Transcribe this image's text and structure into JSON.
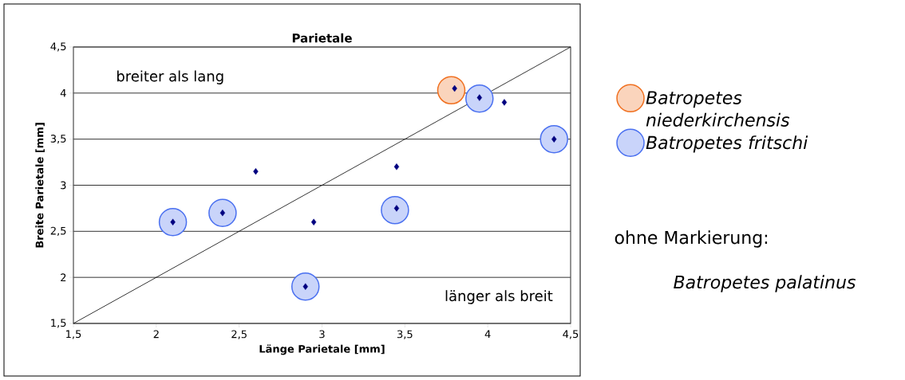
{
  "chart_data": {
    "type": "scatter",
    "title": "Parietale",
    "xlabel": "Länge Parietale [mm]",
    "ylabel": "Breite Parietale [mm]",
    "xlim": [
      1.5,
      4.5
    ],
    "ylim": [
      1.5,
      4.5
    ],
    "xticks": [
      {
        "value": 1.5,
        "label": "1,5"
      },
      2,
      {
        "value": 2.5,
        "label": "2,5"
      },
      3,
      {
        "value": 3.5,
        "label": "3,5"
      },
      4,
      {
        "value": 4.5,
        "label": "4,5"
      }
    ],
    "yticks": [
      {
        "value": 1.5,
        "label": "1,5"
      },
      2,
      {
        "value": 2.5,
        "label": "2,5"
      },
      3,
      {
        "value": 3.5,
        "label": "3,5"
      },
      4,
      {
        "value": 4.5,
        "label": "4,5"
      }
    ],
    "grid": "y",
    "legend": "right",
    "series": [
      {
        "name": "*Batropetes niederkirchensis*",
        "marker": "circle",
        "color": "#f07020",
        "x": [
          3.78
        ],
        "values": [
          4.03
        ]
      },
      {
        "name": "*Batropetes fritschi*",
        "marker": "circle",
        "color": "#4a70f0",
        "x": [
          2.1,
          2.4,
          2.9,
          3.44,
          3.95,
          4.4
        ],
        "values": [
          2.6,
          2.7,
          1.9,
          2.73,
          3.94,
          3.5
        ]
      },
      {
        "type": "line",
        "marker": "none",
        "color": "#000000",
        "x": [
          1.5,
          4.5
        ],
        "values": [
          1.5,
          4.5
        ]
      },
      {
        "marker": "diamond",
        "color": "#000080",
        "x": [
          2.1,
          2.4,
          2.6,
          2.9,
          2.95,
          3.45,
          3.45,
          3.8,
          3.95,
          4.1,
          4.4
        ],
        "values": [
          2.6,
          2.7,
          3.15,
          1.9,
          2.6,
          3.2,
          2.75,
          4.05,
          3.95,
          3.9,
          3.5
        ]
      }
    ],
    "annotations": [
      "breiter als lang",
      "länger als breit",
      "ohne Markierung:",
      "*Batropetes palatinus*"
    ]
  }
}
